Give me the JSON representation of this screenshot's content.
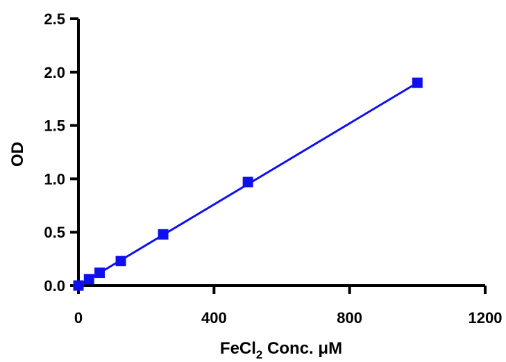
{
  "chart_data": {
    "type": "scatter",
    "x": [
      0,
      31.25,
      62.5,
      125,
      250,
      500,
      1000
    ],
    "y": [
      0.0,
      0.06,
      0.12,
      0.23,
      0.48,
      0.97,
      1.9
    ],
    "fit_line": {
      "x": [
        0,
        1000
      ],
      "y": [
        0.0,
        1.9
      ]
    },
    "xlim": [
      -10,
      1200
    ],
    "ylim": [
      0,
      2.5
    ],
    "xticks": [
      0,
      400,
      800,
      1200
    ],
    "xtick_labels": [
      "0",
      "400",
      "800",
      "1200"
    ],
    "yticks": [
      0,
      0.5,
      1.0,
      1.5,
      2.0,
      2.5
    ],
    "ytick_labels": [
      "0.0",
      "0.5",
      "1.0",
      "1.5",
      "2.0",
      "2.5"
    ],
    "xlabel": {
      "main": "FeCl",
      "subscript": "2",
      "rest": " Conc. μM"
    },
    "ylabel": "OD",
    "grid": false,
    "marker": "square",
    "color": "#1010ee"
  }
}
